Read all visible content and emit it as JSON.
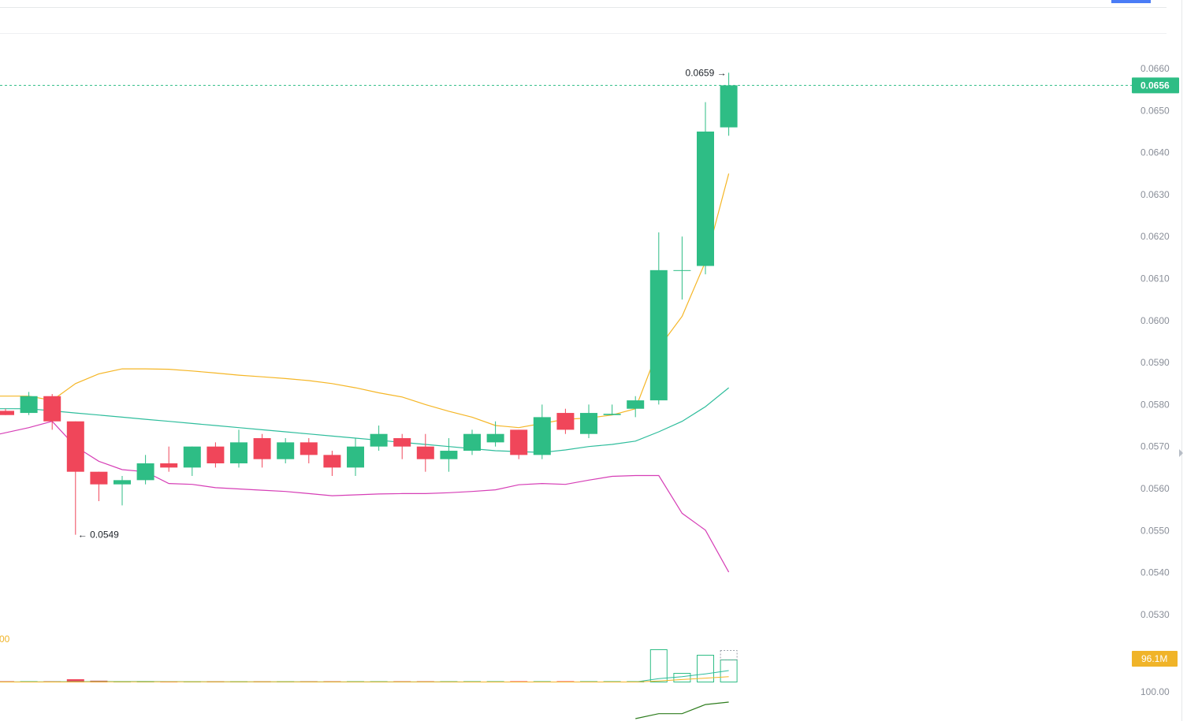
{
  "chart_data": {
    "type": "candlestick",
    "y_axis": {
      "ticks": [
        "0.0660",
        "0.0650",
        "0.0640",
        "0.0630",
        "0.0620",
        "0.0610",
        "0.0600",
        "0.0590",
        "0.0580",
        "0.0570",
        "0.0560",
        "0.0550",
        "0.0540",
        "0.0530"
      ],
      "range": [
        0.0525,
        0.0663
      ],
      "position": "right"
    },
    "current_price": {
      "value": 0.0656,
      "label": "0.0656",
      "color": "#2ebd85"
    },
    "annotations": {
      "high": {
        "value": 0.0659,
        "label": "0.0659 →"
      },
      "low": {
        "value": 0.0549,
        "label": "← 0.0549"
      }
    },
    "colors": {
      "up": "#2ebd85",
      "down": "#f0465a",
      "ma_yellow": "#f5b626",
      "ma_teal": "#2ebd9c",
      "ma_pink": "#d63eb6"
    },
    "candles": [
      {
        "o": 0.05785,
        "h": 0.0579,
        "l": 0.05775,
        "c": 0.05775
      },
      {
        "o": 0.0578,
        "h": 0.0583,
        "l": 0.05775,
        "c": 0.0582
      },
      {
        "o": 0.0582,
        "h": 0.05825,
        "l": 0.0574,
        "c": 0.0576
      },
      {
        "o": 0.0576,
        "h": 0.0576,
        "l": 0.0549,
        "c": 0.0564
      },
      {
        "o": 0.0564,
        "h": 0.0564,
        "l": 0.0557,
        "c": 0.0561
      },
      {
        "o": 0.0561,
        "h": 0.0563,
        "l": 0.0556,
        "c": 0.0562
      },
      {
        "o": 0.0562,
        "h": 0.0568,
        "l": 0.0561,
        "c": 0.0566
      },
      {
        "o": 0.0566,
        "h": 0.057,
        "l": 0.0564,
        "c": 0.0565
      },
      {
        "o": 0.0565,
        "h": 0.057,
        "l": 0.0563,
        "c": 0.057
      },
      {
        "o": 0.057,
        "h": 0.0571,
        "l": 0.0565,
        "c": 0.0566
      },
      {
        "o": 0.0566,
        "h": 0.0574,
        "l": 0.0565,
        "c": 0.0571
      },
      {
        "o": 0.0572,
        "h": 0.0573,
        "l": 0.0565,
        "c": 0.0567
      },
      {
        "o": 0.0567,
        "h": 0.0572,
        "l": 0.0566,
        "c": 0.0571
      },
      {
        "o": 0.0571,
        "h": 0.0572,
        "l": 0.0566,
        "c": 0.0568
      },
      {
        "o": 0.0568,
        "h": 0.0569,
        "l": 0.0563,
        "c": 0.0565
      },
      {
        "o": 0.0565,
        "h": 0.0572,
        "l": 0.0563,
        "c": 0.057
      },
      {
        "o": 0.057,
        "h": 0.0575,
        "l": 0.0569,
        "c": 0.0573
      },
      {
        "o": 0.0572,
        "h": 0.0573,
        "l": 0.0567,
        "c": 0.057
      },
      {
        "o": 0.057,
        "h": 0.0573,
        "l": 0.0564,
        "c": 0.0567
      },
      {
        "o": 0.0567,
        "h": 0.0572,
        "l": 0.0564,
        "c": 0.0569
      },
      {
        "o": 0.0569,
        "h": 0.0574,
        "l": 0.0568,
        "c": 0.0573
      },
      {
        "o": 0.0571,
        "h": 0.0576,
        "l": 0.057,
        "c": 0.0573
      },
      {
        "o": 0.0574,
        "h": 0.0574,
        "l": 0.0567,
        "c": 0.0568
      },
      {
        "o": 0.0568,
        "h": 0.058,
        "l": 0.0567,
        "c": 0.0577
      },
      {
        "o": 0.0578,
        "h": 0.0579,
        "l": 0.0573,
        "c": 0.0574
      },
      {
        "o": 0.0573,
        "h": 0.058,
        "l": 0.0572,
        "c": 0.0578
      },
      {
        "o": 0.05775,
        "h": 0.058,
        "l": 0.05775,
        "c": 0.05778
      },
      {
        "o": 0.0579,
        "h": 0.0582,
        "l": 0.0577,
        "c": 0.0581
      },
      {
        "o": 0.0581,
        "h": 0.0621,
        "l": 0.058,
        "c": 0.0612
      },
      {
        "o": 0.0612,
        "h": 0.062,
        "l": 0.0605,
        "c": 0.0612
      },
      {
        "o": 0.0613,
        "h": 0.0652,
        "l": 0.0611,
        "c": 0.0645
      },
      {
        "o": 0.0646,
        "h": 0.0659,
        "l": 0.0644,
        "c": 0.0656
      }
    ],
    "ma_yellow": [
      0.0582,
      0.0582,
      0.0581,
      0.0585,
      0.05873,
      0.05885,
      0.05885,
      0.05884,
      0.0588,
      0.05875,
      0.0587,
      0.05866,
      0.05862,
      0.05857,
      0.0585,
      0.0584,
      0.05828,
      0.05818,
      0.058,
      0.05784,
      0.0577,
      0.0575,
      0.05745,
      0.05755,
      0.05765,
      0.05768,
      0.05775,
      0.0579,
      0.05935,
      0.0601,
      0.0614,
      0.0635
    ],
    "ma_teal": [
      0.0579,
      0.0579,
      0.05785,
      0.0578,
      0.05775,
      0.0577,
      0.05765,
      0.0576,
      0.05755,
      0.0575,
      0.05745,
      0.0574,
      0.05735,
      0.0573,
      0.05725,
      0.0572,
      0.05715,
      0.0571,
      0.05705,
      0.057,
      0.05695,
      0.0569,
      0.05688,
      0.05686,
      0.05692,
      0.057,
      0.05705,
      0.05713,
      0.05735,
      0.0576,
      0.05795,
      0.0584
    ],
    "ma_pink": [
      0.0573,
      0.05745,
      0.0576,
      0.057,
      0.05665,
      0.05645,
      0.0564,
      0.05612,
      0.0561,
      0.05602,
      0.05599,
      0.05596,
      0.05593,
      0.05588,
      0.05583,
      0.05585,
      0.05587,
      0.05588,
      0.05588,
      0.0559,
      0.05593,
      0.05597,
      0.05609,
      0.05612,
      0.0561,
      0.0562,
      0.05629,
      0.05631,
      0.05631,
      0.05541,
      0.05501,
      0.05401
    ],
    "volume": {
      "label": "96.1M",
      "right_label": "100.00",
      "left_fragment": "00",
      "color": "#f0b429",
      "bars": [
        {
          "v": 1.0,
          "up": false
        },
        {
          "v": 1.1,
          "up": true
        },
        {
          "v": 1.3,
          "up": false
        },
        {
          "v": 4.0,
          "up": false
        },
        {
          "v": 2.2,
          "up": false
        },
        {
          "v": 1.4,
          "up": true
        },
        {
          "v": 1.6,
          "up": true
        },
        {
          "v": 1.2,
          "up": false
        },
        {
          "v": 1.0,
          "up": true
        },
        {
          "v": 0.9,
          "up": false
        },
        {
          "v": 1.5,
          "up": true
        },
        {
          "v": 1.0,
          "up": false
        },
        {
          "v": 0.9,
          "up": true
        },
        {
          "v": 0.8,
          "up": false
        },
        {
          "v": 0.9,
          "up": false
        },
        {
          "v": 0.9,
          "up": true
        },
        {
          "v": 0.8,
          "up": true
        },
        {
          "v": 0.9,
          "up": false
        },
        {
          "v": 1.2,
          "up": false
        },
        {
          "v": 0.8,
          "up": true
        },
        {
          "v": 0.8,
          "up": true
        },
        {
          "v": 0.9,
          "up": true
        },
        {
          "v": 0.8,
          "up": false
        },
        {
          "v": 0.9,
          "up": true
        },
        {
          "v": 0.8,
          "up": false
        },
        {
          "v": 0.7,
          "up": true
        },
        {
          "v": 0.6,
          "up": true
        },
        {
          "v": 0.8,
          "up": true
        },
        {
          "v": 42.0,
          "up": true
        },
        {
          "v": 12.0,
          "up": true
        },
        {
          "v": 35.0,
          "up": true
        },
        {
          "v": 29.0,
          "up": true
        }
      ],
      "ma1": [
        1.0,
        1.0,
        1.1,
        1.6,
        1.8,
        1.8,
        1.8,
        1.7,
        1.6,
        1.4,
        1.4,
        1.3,
        1.2,
        1.1,
        1.0,
        1.0,
        1.0,
        1.0,
        1.0,
        0.95,
        0.9,
        0.9,
        0.9,
        0.9,
        0.85,
        0.8,
        0.8,
        0.8,
        8.0,
        12.0,
        18.0,
        25.0
      ],
      "ma2": [
        0.9,
        0.9,
        0.9,
        1.0,
        1.1,
        1.1,
        1.2,
        1.2,
        1.2,
        1.2,
        1.1,
        1.1,
        1.1,
        1.05,
        1.0,
        1.0,
        1.0,
        1.0,
        0.95,
        0.95,
        0.9,
        0.9,
        0.9,
        0.9,
        0.9,
        0.85,
        0.85,
        0.85,
        3.0,
        6.0,
        9.0,
        12.0
      ]
    },
    "indicator": {
      "line": [
        0.0,
        0.3,
        0.3,
        0.85,
        1.0
      ],
      "color": "#2e7d1e"
    }
  }
}
